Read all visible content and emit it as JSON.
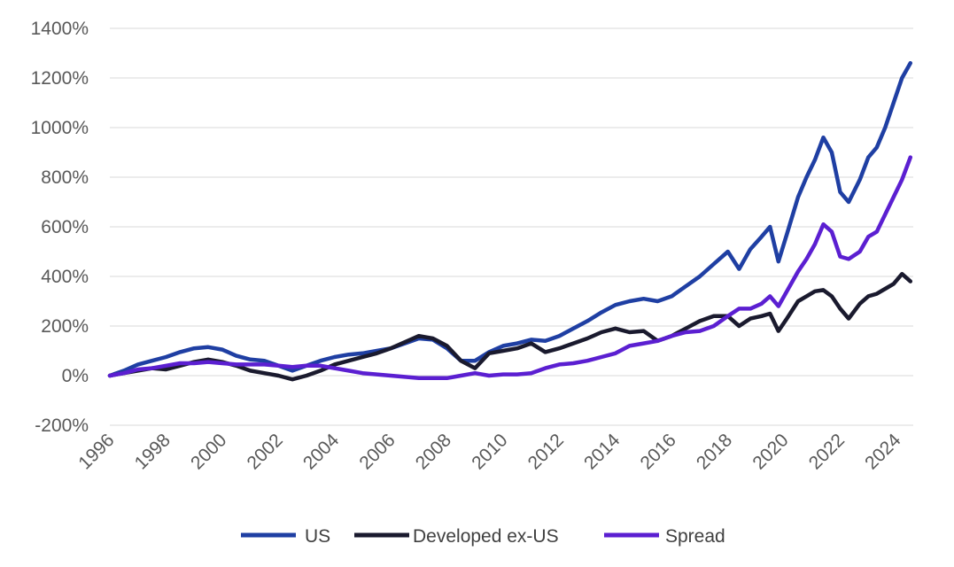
{
  "chart_data": {
    "type": "line",
    "title": "",
    "xlabel": "",
    "ylabel": "",
    "x_unit": "year",
    "xlim": [
      1996,
      2024.6
    ],
    "ylim": [
      -200,
      1400
    ],
    "y_ticks": [
      -200,
      0,
      200,
      400,
      600,
      800,
      1000,
      1200,
      1400
    ],
    "y_tick_labels": [
      "-200%",
      "0%",
      "200%",
      "400%",
      "600%",
      "800%",
      "1000%",
      "1200%",
      "1400%"
    ],
    "x_ticks": [
      1996,
      1998,
      2000,
      2002,
      2004,
      2006,
      2008,
      2010,
      2012,
      2014,
      2016,
      2018,
      2020,
      2022,
      2024
    ],
    "x_tick_labels": [
      "1996",
      "1998",
      "2000",
      "2002",
      "2004",
      "2006",
      "2008",
      "2010",
      "2012",
      "2014",
      "2016",
      "2018",
      "2020",
      "2022",
      "2024"
    ],
    "grid": "horizontal",
    "legend_position": "bottom",
    "series": [
      {
        "name": "US",
        "color": "#1f3fa3",
        "points": [
          [
            1996,
            0
          ],
          [
            1996.5,
            20
          ],
          [
            1997,
            45
          ],
          [
            1997.5,
            60
          ],
          [
            1998,
            75
          ],
          [
            1998.5,
            95
          ],
          [
            1999,
            110
          ],
          [
            1999.5,
            115
          ],
          [
            2000,
            105
          ],
          [
            2000.5,
            80
          ],
          [
            2001,
            65
          ],
          [
            2001.5,
            60
          ],
          [
            2002,
            40
          ],
          [
            2002.5,
            20
          ],
          [
            2003,
            40
          ],
          [
            2003.5,
            60
          ],
          [
            2004,
            75
          ],
          [
            2004.5,
            85
          ],
          [
            2005,
            90
          ],
          [
            2005.5,
            100
          ],
          [
            2006,
            110
          ],
          [
            2006.5,
            130
          ],
          [
            2007,
            150
          ],
          [
            2007.5,
            145
          ],
          [
            2008,
            110
          ],
          [
            2008.5,
            60
          ],
          [
            2009,
            60
          ],
          [
            2009.5,
            95
          ],
          [
            2010,
            120
          ],
          [
            2010.5,
            130
          ],
          [
            2011,
            145
          ],
          [
            2011.5,
            140
          ],
          [
            2012,
            160
          ],
          [
            2012.5,
            190
          ],
          [
            2013,
            220
          ],
          [
            2013.5,
            255
          ],
          [
            2014,
            285
          ],
          [
            2014.5,
            300
          ],
          [
            2015,
            310
          ],
          [
            2015.5,
            300
          ],
          [
            2016,
            320
          ],
          [
            2016.5,
            360
          ],
          [
            2017,
            400
          ],
          [
            2017.5,
            450
          ],
          [
            2018,
            500
          ],
          [
            2018.4,
            430
          ],
          [
            2018.8,
            510
          ],
          [
            2019.2,
            560
          ],
          [
            2019.5,
            600
          ],
          [
            2019.8,
            460
          ],
          [
            2020.1,
            570
          ],
          [
            2020.5,
            720
          ],
          [
            2020.8,
            800
          ],
          [
            2021.1,
            870
          ],
          [
            2021.4,
            960
          ],
          [
            2021.7,
            900
          ],
          [
            2022,
            740
          ],
          [
            2022.3,
            700
          ],
          [
            2022.7,
            790
          ],
          [
            2023,
            880
          ],
          [
            2023.3,
            920
          ],
          [
            2023.6,
            1000
          ],
          [
            2023.9,
            1100
          ],
          [
            2024.2,
            1200
          ],
          [
            2024.5,
            1260
          ]
        ]
      },
      {
        "name": "Developed ex-US",
        "color": "#1a1a2e",
        "points": [
          [
            1996,
            0
          ],
          [
            1996.5,
            10
          ],
          [
            1997,
            20
          ],
          [
            1997.5,
            30
          ],
          [
            1998,
            25
          ],
          [
            1998.5,
            40
          ],
          [
            1999,
            55
          ],
          [
            1999.5,
            65
          ],
          [
            2000,
            55
          ],
          [
            2000.5,
            40
          ],
          [
            2001,
            20
          ],
          [
            2001.5,
            10
          ],
          [
            2002,
            0
          ],
          [
            2002.5,
            -15
          ],
          [
            2003,
            0
          ],
          [
            2003.5,
            20
          ],
          [
            2004,
            45
          ],
          [
            2004.5,
            60
          ],
          [
            2005,
            75
          ],
          [
            2005.5,
            90
          ],
          [
            2006,
            110
          ],
          [
            2006.5,
            135
          ],
          [
            2007,
            160
          ],
          [
            2007.5,
            150
          ],
          [
            2008,
            120
          ],
          [
            2008.5,
            60
          ],
          [
            2009,
            30
          ],
          [
            2009.5,
            90
          ],
          [
            2010,
            100
          ],
          [
            2010.5,
            110
          ],
          [
            2011,
            130
          ],
          [
            2011.5,
            95
          ],
          [
            2012,
            110
          ],
          [
            2012.5,
            130
          ],
          [
            2013,
            150
          ],
          [
            2013.5,
            175
          ],
          [
            2014,
            190
          ],
          [
            2014.5,
            175
          ],
          [
            2015,
            180
          ],
          [
            2015.5,
            140
          ],
          [
            2016,
            160
          ],
          [
            2016.5,
            190
          ],
          [
            2017,
            220
          ],
          [
            2017.5,
            240
          ],
          [
            2018,
            240
          ],
          [
            2018.4,
            200
          ],
          [
            2018.8,
            230
          ],
          [
            2019.2,
            240
          ],
          [
            2019.5,
            250
          ],
          [
            2019.8,
            180
          ],
          [
            2020.1,
            230
          ],
          [
            2020.5,
            300
          ],
          [
            2020.8,
            320
          ],
          [
            2021.1,
            340
          ],
          [
            2021.4,
            345
          ],
          [
            2021.7,
            320
          ],
          [
            2022,
            270
          ],
          [
            2022.3,
            230
          ],
          [
            2022.7,
            290
          ],
          [
            2023,
            320
          ],
          [
            2023.3,
            330
          ],
          [
            2023.6,
            350
          ],
          [
            2023.9,
            370
          ],
          [
            2024.2,
            410
          ],
          [
            2024.5,
            380
          ]
        ]
      },
      {
        "name": "Spread",
        "color": "#5b1fd1",
        "points": [
          [
            1996,
            0
          ],
          [
            1996.5,
            10
          ],
          [
            1997,
            25
          ],
          [
            1997.5,
            30
          ],
          [
            1998,
            40
          ],
          [
            1998.5,
            50
          ],
          [
            1999,
            50
          ],
          [
            1999.5,
            55
          ],
          [
            2000,
            50
          ],
          [
            2000.5,
            45
          ],
          [
            2001,
            45
          ],
          [
            2001.5,
            45
          ],
          [
            2002,
            40
          ],
          [
            2002.5,
            35
          ],
          [
            2003,
            40
          ],
          [
            2003.5,
            40
          ],
          [
            2004,
            30
          ],
          [
            2004.5,
            20
          ],
          [
            2005,
            10
          ],
          [
            2005.5,
            5
          ],
          [
            2006,
            0
          ],
          [
            2006.5,
            -5
          ],
          [
            2007,
            -10
          ],
          [
            2007.5,
            -10
          ],
          [
            2008,
            -10
          ],
          [
            2008.5,
            0
          ],
          [
            2009,
            10
          ],
          [
            2009.5,
            0
          ],
          [
            2010,
            5
          ],
          [
            2010.5,
            5
          ],
          [
            2011,
            10
          ],
          [
            2011.5,
            30
          ],
          [
            2012,
            45
          ],
          [
            2012.5,
            50
          ],
          [
            2013,
            60
          ],
          [
            2013.5,
            75
          ],
          [
            2014,
            90
          ],
          [
            2014.5,
            120
          ],
          [
            2015,
            130
          ],
          [
            2015.5,
            140
          ],
          [
            2016,
            160
          ],
          [
            2016.5,
            175
          ],
          [
            2017,
            180
          ],
          [
            2017.5,
            200
          ],
          [
            2018,
            240
          ],
          [
            2018.4,
            270
          ],
          [
            2018.8,
            270
          ],
          [
            2019.2,
            290
          ],
          [
            2019.5,
            320
          ],
          [
            2019.8,
            280
          ],
          [
            2020.1,
            340
          ],
          [
            2020.5,
            420
          ],
          [
            2020.8,
            470
          ],
          [
            2021.1,
            530
          ],
          [
            2021.4,
            610
          ],
          [
            2021.7,
            580
          ],
          [
            2022,
            480
          ],
          [
            2022.3,
            470
          ],
          [
            2022.7,
            500
          ],
          [
            2023,
            560
          ],
          [
            2023.3,
            580
          ],
          [
            2023.6,
            650
          ],
          [
            2023.9,
            720
          ],
          [
            2024.2,
            790
          ],
          [
            2024.5,
            880
          ]
        ]
      }
    ]
  }
}
